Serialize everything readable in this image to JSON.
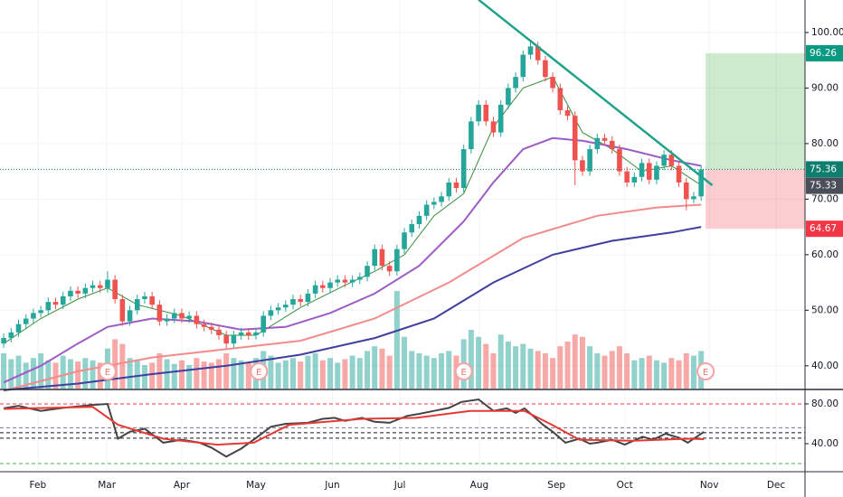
{
  "chart_data": {
    "type": "candlestick",
    "xlim": [
      -0.5,
      108
    ],
    "ylim": [
      35.9,
      105.85
    ],
    "yticks": [
      {
        "value": 40,
        "label": "40.00"
      },
      {
        "value": 50,
        "label": "50.00"
      },
      {
        "value": 60,
        "label": "60.00"
      },
      {
        "value": 70,
        "label": "70.00"
      },
      {
        "value": 80,
        "label": "80.00"
      },
      {
        "value": 90,
        "label": "90.00"
      },
      {
        "value": 100,
        "label": "100.00"
      }
    ],
    "xticks": [
      {
        "value": 4.6,
        "label": "Feb"
      },
      {
        "value": 13.9,
        "label": "Mar"
      },
      {
        "value": 24,
        "label": "Apr"
      },
      {
        "value": 34,
        "label": "May"
      },
      {
        "value": 44.3,
        "label": "Jun"
      },
      {
        "value": 53.4,
        "label": "Jul"
      },
      {
        "value": 64.1,
        "label": "Aug"
      },
      {
        "value": 74.5,
        "label": "Sep"
      },
      {
        "value": 83.7,
        "label": "Oct"
      },
      {
        "value": 95.1,
        "label": "Nov"
      },
      {
        "value": 104.1,
        "label": "Dec"
      }
    ],
    "grid": true,
    "up_color": "#26a69a",
    "down_color": "#ef5350",
    "open": [
      44,
      45,
      46,
      47.5,
      48.5,
      49.5,
      50,
      51.5,
      51,
      52.5,
      53.5,
      53,
      54,
      54.5,
      54,
      55.5,
      52,
      48,
      50,
      52,
      52.5,
      51,
      48,
      48.5,
      49.5,
      48.5,
      49,
      47.5,
      47,
      46.5,
      45.5,
      44,
      45.5,
      46,
      45.5,
      46,
      49,
      50,
      50.5,
      51,
      52,
      51.5,
      53,
      54.5,
      54,
      55,
      55.5,
      55,
      55.5,
      56,
      58,
      61,
      58,
      57,
      61,
      64,
      65.5,
      67,
      69,
      69.5,
      70.5,
      73,
      72,
      79,
      84,
      87,
      84,
      82,
      87,
      90,
      92,
      96,
      97.5,
      95,
      92,
      90,
      86,
      85,
      77,
      75,
      79,
      81,
      80.5,
      79,
      75,
      73,
      74,
      76.5,
      73.5,
      76,
      78,
      76,
      73,
      70,
      70.5
    ],
    "high": [
      45.8,
      46.8,
      48.3,
      49.3,
      50.3,
      50.8,
      52.3,
      52.3,
      53.3,
      54.3,
      54.3,
      54.8,
      55.3,
      55.3,
      57,
      56.3,
      52.8,
      50.8,
      52.8,
      53.3,
      53.3,
      51.8,
      49.3,
      50.3,
      50.3,
      49.8,
      49.8,
      48.3,
      47.8,
      47.3,
      46.3,
      46.3,
      46.8,
      46.8,
      46.8,
      49.8,
      50.8,
      51.3,
      51.8,
      52.8,
      52.8,
      53.8,
      55.3,
      55.3,
      55.8,
      56.3,
      56.3,
      56.3,
      56.8,
      58.8,
      61.8,
      61.8,
      58.8,
      61.8,
      64.8,
      66.3,
      67.8,
      69.8,
      70.3,
      71.3,
      73.8,
      73.8,
      79.8,
      84.8,
      87.8,
      87.8,
      84.8,
      87.8,
      90.8,
      92.8,
      96.8,
      98.3,
      98.3,
      95.8,
      92.8,
      90.8,
      86.8,
      85.8,
      77.8,
      79.8,
      81.8,
      81.8,
      81.3,
      79.8,
      75.8,
      74.8,
      77.3,
      77.3,
      76.8,
      78.8,
      78.8,
      76.8,
      73.8,
      71.3,
      76.1
    ],
    "low": [
      43.2,
      44.2,
      45.2,
      46.7,
      47.7,
      48.7,
      49.2,
      50.2,
      50.2,
      51.7,
      52.2,
      52.2,
      53.2,
      53.2,
      53.2,
      51.2,
      47.2,
      47.2,
      49.2,
      51.2,
      50.2,
      47.2,
      47.2,
      47.7,
      47.7,
      47.7,
      46.7,
      46.2,
      45.7,
      44.7,
      43.2,
      43.2,
      44.7,
      44.7,
      44.7,
      45.2,
      48.2,
      49.2,
      49.7,
      50.2,
      50.7,
      50.7,
      52.2,
      53.2,
      53.2,
      54.2,
      54.2,
      54.2,
      54.7,
      55.2,
      57.2,
      57.2,
      56.2,
      56.2,
      60.2,
      63.2,
      64.7,
      66.2,
      68.2,
      68.7,
      69.7,
      71.2,
      71.2,
      78.2,
      83.2,
      83.2,
      81.2,
      81.2,
      86.2,
      89.2,
      91.2,
      95.2,
      94.2,
      91.2,
      89.2,
      85.2,
      84.2,
      72.5,
      74.2,
      74.2,
      78.2,
      79.7,
      78.2,
      74.2,
      72.2,
      72.2,
      73.2,
      72.7,
      72.7,
      75.2,
      75.2,
      72.2,
      68,
      69.2,
      69.7
    ],
    "close": [
      45,
      46,
      47.5,
      48.5,
      49.5,
      50,
      51.5,
      51,
      52.5,
      53.5,
      53,
      54,
      54.5,
      54,
      55.5,
      52,
      48,
      50,
      52,
      52.5,
      51,
      48,
      48.5,
      49.5,
      48.5,
      49,
      47.5,
      47,
      46.5,
      45.5,
      44,
      45.5,
      46,
      45.5,
      46,
      49,
      50,
      50.5,
      51,
      52,
      51.5,
      53,
      54.5,
      54,
      55,
      55.5,
      55,
      55.5,
      56,
      58,
      61,
      58,
      57,
      61,
      64,
      65.5,
      67,
      69,
      69.5,
      70.5,
      73,
      72,
      79,
      84,
      87,
      84,
      82,
      87,
      90,
      92,
      96,
      97.5,
      95,
      92,
      90,
      86,
      85,
      77,
      75,
      79,
      81,
      80.5,
      79,
      75,
      73,
      74,
      76.5,
      73.5,
      76,
      78,
      76,
      73,
      70,
      70.5,
      75.33
    ],
    "volume": [
      3,
      2.5,
      2.8,
      2.2,
      2.6,
      3,
      2.4,
      2.2,
      2.8,
      2.5,
      2.3,
      2.6,
      2.4,
      2.2,
      3.4,
      4.2,
      3.8,
      2.6,
      2.4,
      2,
      2.2,
      3,
      2.5,
      2.1,
      2.4,
      2,
      2.6,
      2.3,
      2.2,
      2.5,
      3,
      2.6,
      2.4,
      2.2,
      2.6,
      3.2,
      2.8,
      2.2,
      2.4,
      2.6,
      2.3,
      2.8,
      3,
      2.4,
      2.6,
      2.2,
      2.5,
      2.8,
      2.6,
      3.2,
      3.6,
      3.4,
      2.8,
      8.3,
      4.4,
      3.2,
      3,
      2.8,
      2.6,
      3,
      3.2,
      2.8,
      4.2,
      5,
      4.4,
      3.8,
      3,
      4.6,
      4,
      3.6,
      3.8,
      3.4,
      3.2,
      3,
      2.6,
      3.6,
      4,
      4.6,
      4.4,
      3.6,
      3,
      2.8,
      3.2,
      3.6,
      3,
      2.4,
      2.6,
      2.8,
      2.4,
      2.2,
      2.6,
      2.4,
      3,
      2.8,
      3.2
    ],
    "volume_lim": [
      0,
      10
    ],
    "moving_averages": [
      {
        "color": "#388e3c",
        "x": [
          0,
          5,
          10,
          14,
          18,
          24,
          30,
          34,
          40,
          46,
          50,
          54,
          58,
          62,
          66,
          70,
          74,
          78,
          82,
          86,
          90,
          94
        ],
        "values": [
          44,
          48.5,
          52,
          54,
          51,
          49,
          45.5,
          45.5,
          50.5,
          54.5,
          57,
          60,
          67,
          71,
          83,
          90,
          92,
          82,
          79,
          75,
          76,
          72.5
        ]
      },
      {
        "color": "#9c5cc4",
        "x": [
          0,
          5,
          10,
          14,
          20,
          26,
          32,
          38,
          44,
          50,
          56,
          62,
          66,
          70,
          74,
          78,
          84,
          90,
          94
        ],
        "values": [
          37,
          40,
          44,
          47,
          48.5,
          48,
          46.5,
          47,
          49.5,
          53,
          58,
          66,
          73,
          79,
          81,
          80.5,
          79,
          77,
          76
        ]
      },
      {
        "color": "#f28b8b",
        "x": [
          0,
          10,
          20,
          30,
          40,
          50,
          60,
          70,
          80,
          88,
          94
        ],
        "values": [
          35.5,
          39,
          41.5,
          43,
          44.5,
          48.5,
          55,
          63,
          67,
          68.5,
          69
        ]
      },
      {
        "color": "#3f3f9f",
        "x": [
          0,
          10,
          20,
          30,
          40,
          50,
          58,
          66,
          74,
          82,
          90,
          94
        ],
        "values": [
          35.6,
          36.8,
          38.5,
          40,
          42,
          45,
          48.5,
          55,
          60,
          62.5,
          64,
          65
        ]
      }
    ],
    "trendline": {
      "color": "#1ea38a",
      "x": [
        64,
        95.5
      ],
      "y": [
        105.9,
        72.5
      ]
    },
    "position": {
      "x": [
        94.6,
        108
      ],
      "target": 96.26,
      "entry": 75.36,
      "stop": 64.67
    },
    "earnings": {
      "x": [
        14,
        34.4,
        62,
        94.6
      ],
      "label": "E"
    },
    "rsi": {
      "ylim": [
        11.8,
        93.6
      ],
      "yticks": [
        {
          "value": 80,
          "label": "80.00"
        },
        {
          "value": 40,
          "label": "40.00"
        }
      ],
      "levels": [
        {
          "value": 80,
          "color": "#f23645"
        },
        {
          "value": 56,
          "color": "#787b86"
        },
        {
          "value": 51,
          "color": "#131722"
        },
        {
          "value": 45.5,
          "color": "#131722"
        },
        {
          "value": 20,
          "color": "#4caf50"
        }
      ],
      "series": [
        {
          "color": "#444444",
          "x": [
            0,
            2,
            5,
            8,
            12,
            14,
            15.4,
            17,
            19,
            21.5,
            24,
            26.4,
            28,
            30,
            32,
            33.7,
            36,
            38,
            41,
            43,
            44.6,
            46,
            48.3,
            50,
            52,
            54.4,
            56,
            58,
            60,
            61.7,
            64,
            66,
            67.8,
            69,
            70.2,
            72.7,
            74,
            75.7,
            77.6,
            79,
            80,
            82,
            83.7,
            86.1,
            87.5,
            89.2,
            91,
            92.2,
            94.4
          ],
          "values": [
            75.5,
            78,
            73,
            76,
            79,
            80,
            45,
            52,
            55,
            41,
            44,
            41,
            36,
            27,
            35,
            44,
            57,
            60,
            61,
            65,
            66,
            63,
            66,
            62,
            61,
            68,
            70,
            73,
            76,
            82,
            84.5,
            73,
            75.5,
            71,
            75.5,
            59,
            52,
            41,
            45,
            40,
            41,
            44,
            39,
            47,
            44,
            50,
            46,
            41,
            52
          ]
        },
        {
          "color": "#e53935",
          "x": [
            0,
            12,
            15.4,
            21.5,
            28.8,
            33.7,
            38.5,
            48.3,
            55.6,
            62.9,
            70.2,
            73.9,
            77.6,
            84.9,
            92.2,
            94.4
          ],
          "values": [
            75,
            77,
            59,
            45,
            39,
            41,
            59,
            65,
            66,
            73,
            73,
            59,
            44,
            43,
            45,
            44.5
          ]
        }
      ]
    }
  }
}
